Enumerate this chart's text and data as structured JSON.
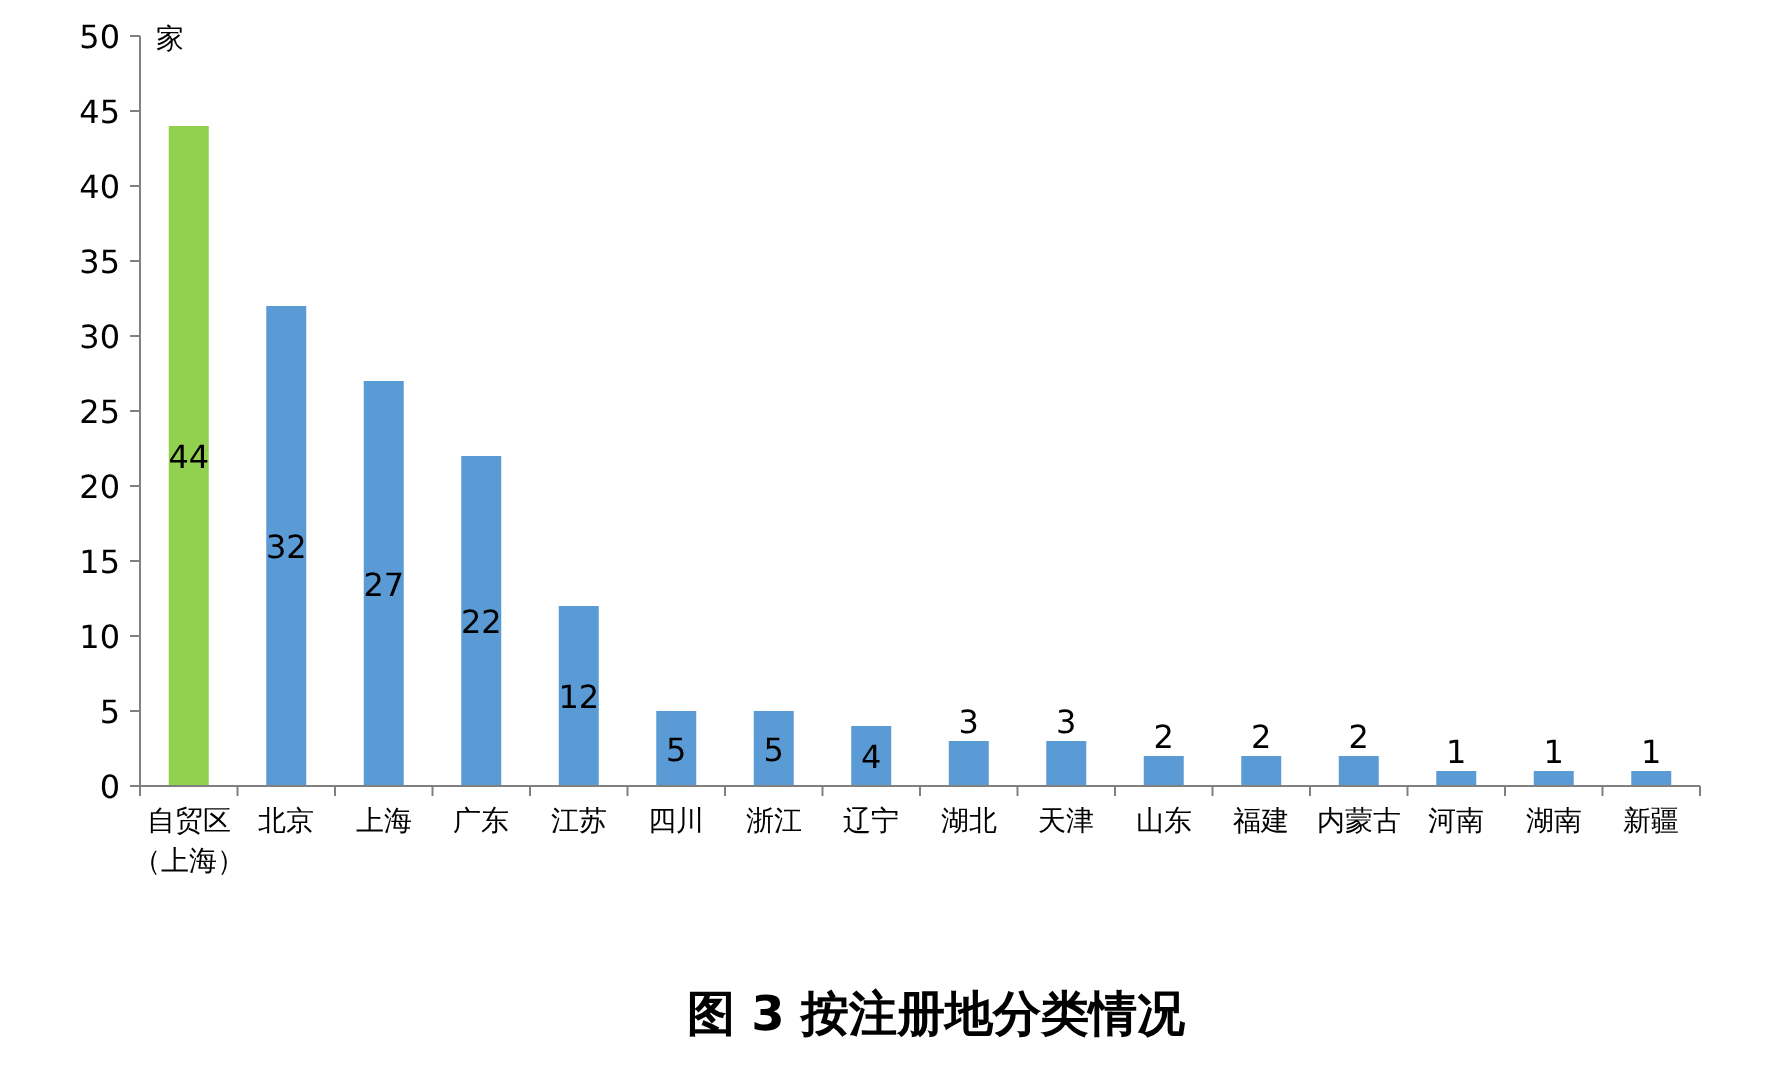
{
  "chart_data": {
    "type": "bar",
    "title": "图 3 按注册地分类情况",
    "ylabel": "家",
    "categories": [
      "自贸区（上海）",
      "北京",
      "上海",
      "广东",
      "江苏",
      "四川",
      "浙江",
      "辽宁",
      "湖北",
      "天津",
      "山东",
      "福建",
      "内蒙古",
      "河南",
      "湖南",
      "新疆"
    ],
    "values": [
      44,
      32,
      27,
      22,
      12,
      5,
      5,
      4,
      3,
      3,
      2,
      2,
      2,
      1,
      1,
      1
    ],
    "colors": [
      "#92d050",
      "#5b9bd5",
      "#5b9bd5",
      "#5b9bd5",
      "#5b9bd5",
      "#5b9bd5",
      "#5b9bd5",
      "#5b9bd5",
      "#5b9bd5",
      "#5b9bd5",
      "#5b9bd5",
      "#5b9bd5",
      "#5b9bd5",
      "#5b9bd5",
      "#5b9bd5",
      "#5b9bd5"
    ],
    "ylim": [
      0,
      50
    ],
    "yticks": [
      0,
      5,
      10,
      15,
      20,
      25,
      30,
      35,
      40,
      45,
      50
    ],
    "data_labels": true,
    "grid": false
  }
}
